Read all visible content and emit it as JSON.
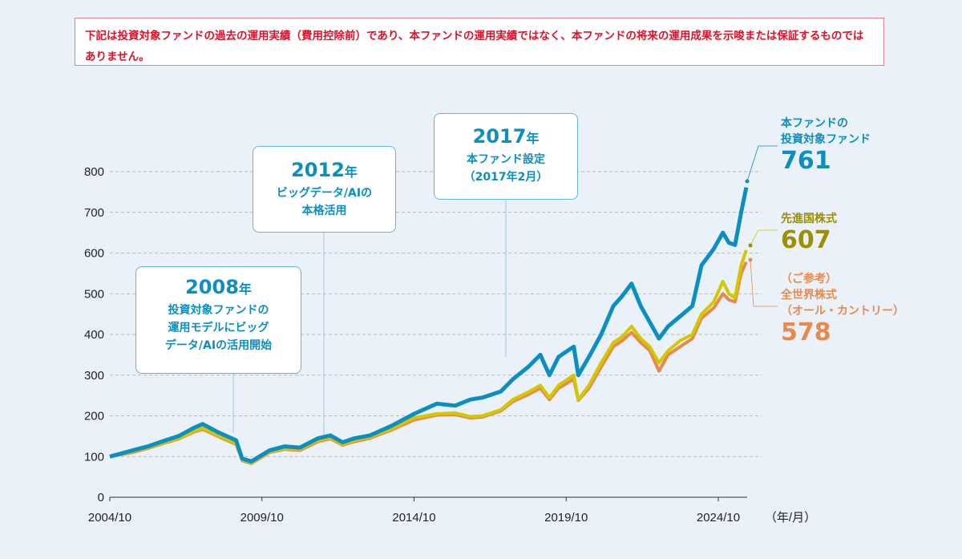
{
  "notice": "下記は投資対象ファンドの過去の運用実績（費用控除前）であり、本ファンドの運用実績ではなく、本ファンドの将来の運用成果を示唆または保証するものではありません。",
  "callouts": [
    {
      "year": "2008",
      "suffix": "年",
      "lines": [
        "投資対象ファンドの",
        "運用モデルにビッグ",
        "データ/AIの活用開始"
      ]
    },
    {
      "year": "2012",
      "suffix": "年",
      "lines": [
        "ビッグデータ/AIの",
        "本格活用"
      ]
    },
    {
      "year": "2017",
      "suffix": "年",
      "lines": [
        "本ファンド設定",
        "（2017年2月）"
      ]
    }
  ],
  "colors": {
    "fund": "#0a8fc0",
    "developed": "#d2c800",
    "developed_label": "#9a9000",
    "world": "#e88a4c",
    "grid": "#aaaaaa"
  },
  "chart_data": {
    "type": "line",
    "xlabel": "（年/月）",
    "ylim": [
      0,
      800
    ],
    "yticks": [
      "0",
      "100",
      "200",
      "300",
      "400",
      "500",
      "600",
      "700",
      "800"
    ],
    "xticks": [
      "2004/10",
      "2009/10",
      "2014/10",
      "2019/10",
      "2024/10"
    ],
    "grid": true,
    "series": [
      {
        "name": "本ファンドの投資対象ファンド",
        "label_lines": [
          "本ファンドの",
          "投資対象ファンド"
        ],
        "end_label": "761",
        "x": [
          2004.75,
          2005.5,
          2006,
          2006.5,
          2007,
          2007.5,
          2007.8,
          2008.3,
          2008.6,
          2008.9,
          2009.1,
          2009.4,
          2010,
          2010.5,
          2011,
          2011.6,
          2012,
          2012.4,
          2012.8,
          2013.3,
          2014,
          2014.75,
          2015.5,
          2016.1,
          2016.6,
          2017,
          2017.6,
          2018,
          2018.5,
          2018.9,
          2019.2,
          2019.5,
          2020,
          2020.15,
          2020.5,
          2020.9,
          2021.3,
          2021.6,
          2021.9,
          2022.2,
          2022.5,
          2022.8,
          2023.1,
          2023.5,
          2023.9,
          2024.2,
          2024.6,
          2024.9,
          2025.1,
          2025.3,
          2025.5,
          2025.67
        ],
        "y": [
          100,
          115,
          125,
          138,
          150,
          170,
          180,
          160,
          150,
          140,
          95,
          88,
          115,
          125,
          122,
          145,
          152,
          135,
          145,
          152,
          175,
          205,
          230,
          225,
          240,
          245,
          260,
          290,
          320,
          350,
          300,
          345,
          370,
          300,
          345,
          400,
          470,
          495,
          525,
          470,
          430,
          390,
          420,
          445,
          470,
          570,
          610,
          650,
          625,
          620,
          700,
          761
        ]
      },
      {
        "name": "先進国株式",
        "label_lines": [
          "先進国株式"
        ],
        "end_label": "607",
        "x": [
          2004.75,
          2005.5,
          2006,
          2006.5,
          2007,
          2007.5,
          2007.8,
          2008.3,
          2008.6,
          2008.9,
          2009.1,
          2009.4,
          2010,
          2010.5,
          2011,
          2011.6,
          2012,
          2012.4,
          2012.8,
          2013.3,
          2014,
          2014.75,
          2015.5,
          2016.1,
          2016.6,
          2017,
          2017.6,
          2018,
          2018.5,
          2018.9,
          2019.2,
          2019.5,
          2020,
          2020.15,
          2020.5,
          2020.9,
          2021.3,
          2021.6,
          2021.9,
          2022.2,
          2022.5,
          2022.8,
          2023.1,
          2023.5,
          2023.9,
          2024.2,
          2024.6,
          2024.9,
          2025.1,
          2025.3,
          2025.5,
          2025.67
        ],
        "y": [
          100,
          112,
          122,
          134,
          145,
          162,
          170,
          152,
          143,
          132,
          92,
          85,
          112,
          120,
          118,
          140,
          147,
          130,
          140,
          148,
          168,
          195,
          205,
          207,
          198,
          200,
          215,
          240,
          258,
          275,
          245,
          275,
          300,
          240,
          275,
          330,
          380,
          395,
          420,
          390,
          370,
          330,
          360,
          385,
          400,
          450,
          480,
          530,
          500,
          490,
          570,
          607
        ]
      },
      {
        "name": "（ご参考）全世界株式（オール・カントリー）",
        "label_lines": [
          "（ご参考）",
          "全世界株式",
          "（オール・カントリー）"
        ],
        "end_label": "578",
        "x": [
          2004.75,
          2005.5,
          2006,
          2006.5,
          2007,
          2007.5,
          2007.8,
          2008.3,
          2008.6,
          2008.9,
          2009.1,
          2009.4,
          2010,
          2010.5,
          2011,
          2011.6,
          2012,
          2012.4,
          2012.8,
          2013.3,
          2014,
          2014.75,
          2015.5,
          2016.1,
          2016.6,
          2017,
          2017.6,
          2018,
          2018.5,
          2018.9,
          2019.2,
          2019.5,
          2020,
          2020.15,
          2020.5,
          2020.9,
          2021.3,
          2021.6,
          2021.9,
          2022.2,
          2022.5,
          2022.8,
          2023.1,
          2023.5,
          2023.9,
          2024.2,
          2024.6,
          2024.9,
          2025.1,
          2025.3,
          2025.5,
          2025.67
        ],
        "y": [
          100,
          110,
          120,
          132,
          143,
          160,
          167,
          150,
          140,
          130,
          90,
          83,
          110,
          118,
          115,
          137,
          144,
          128,
          137,
          145,
          165,
          190,
          202,
          203,
          195,
          197,
          212,
          235,
          252,
          268,
          240,
          268,
          290,
          238,
          268,
          320,
          370,
          385,
          405,
          380,
          360,
          310,
          350,
          370,
          390,
          440,
          465,
          500,
          485,
          480,
          550,
          578
        ]
      }
    ]
  }
}
